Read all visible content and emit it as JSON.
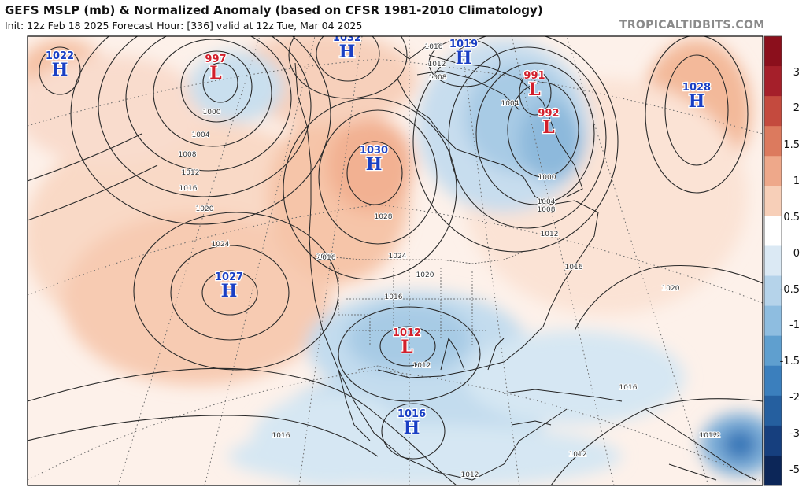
{
  "header": {
    "title": "GEFS MSLP (mb) & Normalized Anomaly (based on CFSR 1981-2010 Climatology)",
    "subtitle": "Init: 12z Feb 18 2025   Forecast Hour: [336]   valid at 12z Tue, Mar 04 2025",
    "brand": "TROPICALTIDBITS.COM"
  },
  "colors": {
    "high": "#1a3fc4",
    "low": "#d21f2b",
    "positive_anomaly": "#f5b89a",
    "negative_anomaly": "#a9cde6"
  },
  "pressure_centers": [
    {
      "type": "H",
      "letter": "H",
      "value": "1022"
    },
    {
      "type": "L",
      "letter": "L",
      "value": "997"
    },
    {
      "type": "H",
      "letter": "H",
      "value": "1032"
    },
    {
      "type": "H",
      "letter": "H",
      "value": "1019"
    },
    {
      "type": "L",
      "letter": "L",
      "value": "991"
    },
    {
      "type": "L",
      "letter": "L",
      "value": "992"
    },
    {
      "type": "H",
      "letter": "H",
      "value": "1028"
    },
    {
      "type": "H",
      "letter": "H",
      "value": "1030"
    },
    {
      "type": "H",
      "letter": "H",
      "value": "1027"
    },
    {
      "type": "L",
      "letter": "L",
      "value": "1012"
    },
    {
      "type": "H",
      "letter": "H",
      "value": "1016"
    }
  ],
  "isobar_labels": [
    "1000",
    "1004",
    "1008",
    "1012",
    "1016",
    "1020",
    "1024",
    "1028",
    "1016",
    "1020",
    "1024",
    "1020",
    "1016",
    "1012",
    "1020",
    "1016",
    "1016",
    "1012",
    "1012",
    "1012",
    "1016",
    "1004",
    "1008",
    "1004",
    "1000",
    "1008",
    "1012",
    "1012",
    "1016",
    "1012"
  ],
  "colorbar": {
    "labels": [
      "3",
      "2",
      "1.5",
      "1",
      "0.5",
      "0",
      "-0.5",
      "-1",
      "-1.5",
      "-2",
      "-3",
      "-5"
    ],
    "colors": [
      "#8b0f1c",
      "#a51f2a",
      "#c44a3e",
      "#dc7a5e",
      "#eea88a",
      "#f7cfb8",
      "#ffffff",
      "#dbe9f4",
      "#b5d3ea",
      "#8ebde0",
      "#5f9fcf",
      "#3b7fbd",
      "#255f9f",
      "#163f7e",
      "#0c2658"
    ]
  }
}
